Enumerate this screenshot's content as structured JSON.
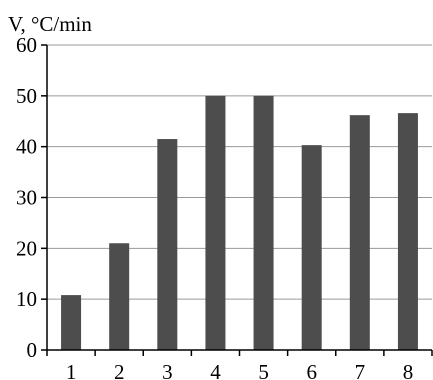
{
  "chart_data": {
    "type": "bar",
    "title": "",
    "xlabel": "",
    "ylabel": "V, °C/min",
    "categories": [
      "1",
      "2",
      "3",
      "4",
      "5",
      "6",
      "7",
      "8"
    ],
    "values": [
      10.8,
      21.0,
      41.5,
      50.0,
      50.0,
      40.3,
      46.2,
      46.6
    ],
    "ylim": [
      0,
      60
    ],
    "yticks": [
      0,
      10,
      20,
      30,
      40,
      50,
      60
    ],
    "grid": true,
    "colors": {
      "bar": "#4d4d4d",
      "grid": "#9a9a9a",
      "axis": "#000000"
    }
  }
}
